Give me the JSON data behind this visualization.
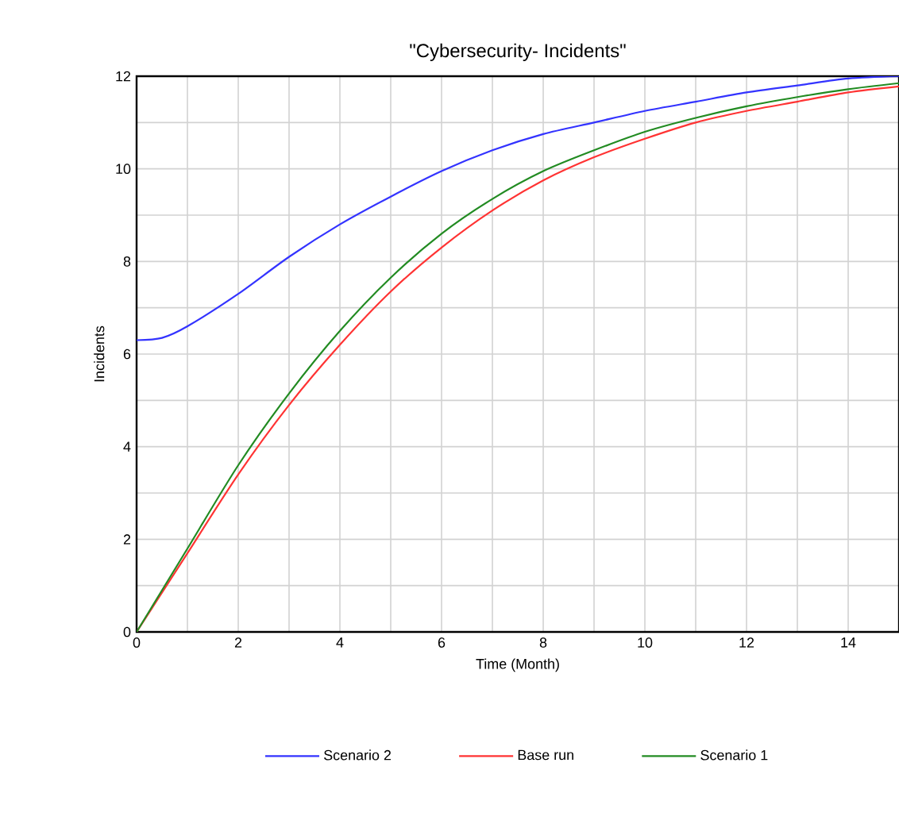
{
  "chart_data": {
    "type": "line",
    "title": "\"Cybersecurity- Incidents\"",
    "xlabel": "Time (Month)",
    "ylabel": "Incidents",
    "xlim": [
      0,
      15
    ],
    "ylim": [
      0,
      12
    ],
    "xticks": [
      0,
      {
        "value": 1,
        "label": null
      },
      2,
      {
        "value": 3,
        "label": null
      },
      4,
      {
        "value": 5,
        "label": null
      },
      6,
      {
        "value": 7,
        "label": null
      },
      8,
      {
        "value": 9,
        "label": null
      },
      10,
      {
        "value": 11,
        "label": null
      },
      12,
      {
        "value": 13,
        "label": null
      },
      14,
      {
        "value": 15,
        "label": null
      }
    ],
    "yticks": [
      0,
      {
        "value": 1,
        "label": null
      },
      2,
      {
        "value": 3,
        "label": null
      },
      4,
      {
        "value": 5,
        "label": null
      },
      6,
      {
        "value": 7,
        "label": null
      },
      8,
      {
        "value": 9,
        "label": null
      },
      10,
      {
        "value": 11,
        "label": null
      },
      12
    ],
    "grid": true,
    "legend": "bottom",
    "marker": "none",
    "line_style": "solid",
    "x": [
      0,
      0.5,
      1,
      2,
      3,
      4,
      5,
      6,
      7,
      8,
      9,
      10,
      11,
      12,
      13,
      14,
      15
    ],
    "series": [
      {
        "name": "Scenario 2",
        "color": "#3333ff",
        "values": [
          6.3,
          6.35,
          6.6,
          7.3,
          8.1,
          8.8,
          9.4,
          9.95,
          10.4,
          10.75,
          11.0,
          11.25,
          11.45,
          11.65,
          11.8,
          11.95,
          12.0
        ]
      },
      {
        "name": "Base run",
        "color": "#ff3333",
        "values": [
          0,
          0.85,
          1.7,
          3.4,
          4.9,
          6.2,
          7.35,
          8.3,
          9.1,
          9.75,
          10.25,
          10.65,
          11.0,
          11.25,
          11.45,
          11.65,
          11.78
        ]
      },
      {
        "name": "Scenario 1",
        "color": "#228b22",
        "values": [
          0,
          0.9,
          1.8,
          3.6,
          5.15,
          6.5,
          7.65,
          8.6,
          9.35,
          9.95,
          10.4,
          10.8,
          11.1,
          11.35,
          11.55,
          11.72,
          11.85
        ]
      }
    ]
  }
}
